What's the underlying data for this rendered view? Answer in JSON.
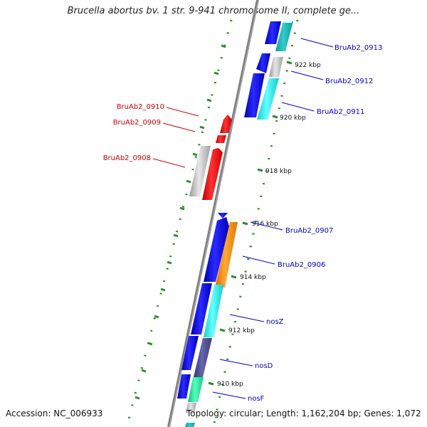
{
  "title": "Brucella abortus bv. 1 str. 9-941 chromosome II, complete ge...",
  "footer": {
    "accession": "Accession: NC_006933",
    "summary": "Topology: circular; Length: 1,162,204 bp; Genes: 1,072"
  },
  "colors": {
    "label_forward": "#0000cc",
    "label_reverse": "#cc0000",
    "axis": "#808080",
    "tick": "#338833",
    "gene_blue": "#1a1aee",
    "gene_cyan": "#22eeee",
    "gene_teal": "#22bbbb",
    "gene_gray": "#c0c0c0",
    "gene_red": "#ee1111",
    "gene_orange": "#ff8800",
    "gene_slate": "#4a4a99",
    "gene_green": "#22ee99"
  },
  "scale_labels": [
    "922 kbp",
    "920 kbp",
    "918 kbp",
    "916 kbp",
    "914 kbp",
    "912 kbp",
    "910 kbp"
  ],
  "genes": [
    {
      "label": "BruAb2_0913",
      "strand": "+",
      "color": "gene_blue"
    },
    {
      "label": "BruAb2_0912",
      "strand": "+",
      "color": "gene_blue"
    },
    {
      "label": "BruAb2_0911",
      "strand": "+",
      "color": "gene_blue"
    },
    {
      "label": "BruAb2_0910",
      "strand": "-",
      "color": "gene_red"
    },
    {
      "label": "BruAb2_0909",
      "strand": "-",
      "color": "gene_red"
    },
    {
      "label": "BruAb2_0908",
      "strand": "-",
      "color": "gene_red"
    },
    {
      "label": "BruAb2_0907",
      "strand": "+",
      "color": "gene_blue"
    },
    {
      "label": "BruAb2_0906",
      "strand": "+",
      "color": "gene_blue"
    },
    {
      "label": "nosZ",
      "strand": "+",
      "color": "gene_blue"
    },
    {
      "label": "nosD",
      "strand": "+",
      "color": "gene_blue"
    },
    {
      "label": "nosF",
      "strand": "+",
      "color": "gene_blue"
    }
  ]
}
